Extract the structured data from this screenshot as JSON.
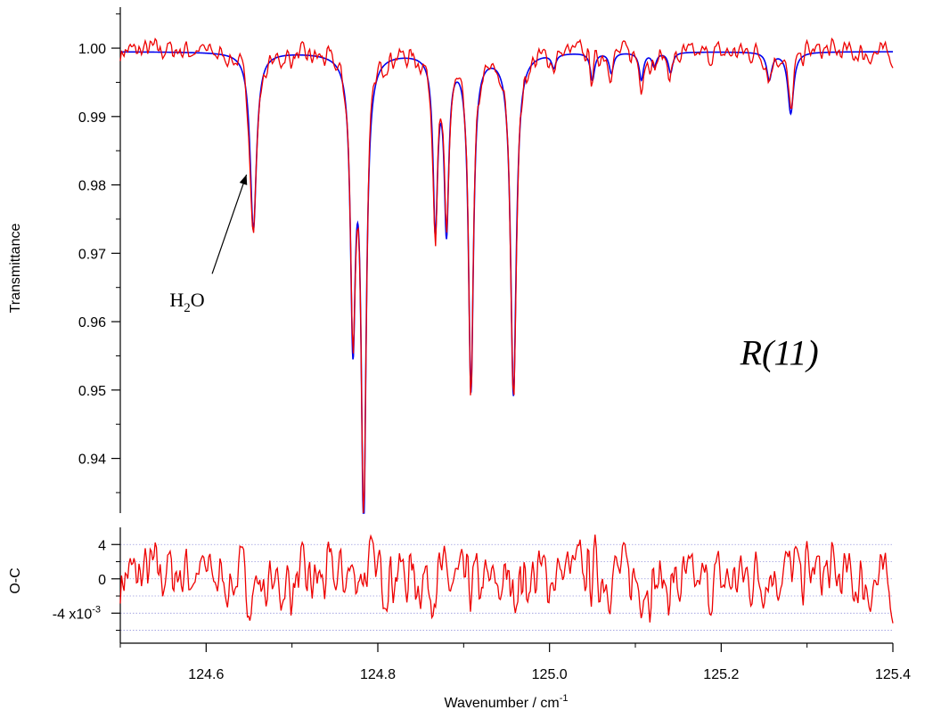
{
  "chart_data": [
    {
      "type": "line",
      "panel": "upper",
      "title": "",
      "xlabel": "",
      "ylabel": "Transmittance",
      "xlim": [
        124.5,
        125.4
      ],
      "ylim": [
        0.932,
        1.006
      ],
      "yticks": [
        0.94,
        0.95,
        0.96,
        0.97,
        0.98,
        0.99,
        1.0
      ],
      "ytick_labels": [
        "0.94",
        "0.95",
        "0.96",
        "0.97",
        "0.98",
        "0.99",
        "1.00"
      ],
      "yminor": [
        0.935,
        0.945,
        0.955,
        0.965,
        0.975,
        0.985,
        0.995,
        1.005
      ],
      "baseline": 0.9995,
      "grid": false,
      "legend": "none",
      "annotations": [
        {
          "text_main": "H",
          "text_sub": "2",
          "text_tail": "O",
          "x": 124.6,
          "y": 0.9625,
          "arrow_to": [
            124.647,
            0.9815
          ]
        },
        {
          "text": "R(11)",
          "x": 125.22,
          "y": 0.9555
        }
      ],
      "series": [
        {
          "color": "#0000ee",
          "kind": "model",
          "lines": [
            {
              "x0": 124.655,
              "depth": 0.026,
              "w": 0.0045
            },
            {
              "x0": 124.771,
              "depth": 0.04,
              "w": 0.0035
            },
            {
              "x0": 124.7835,
              "depth": 0.067,
              "w": 0.0035
            },
            {
              "x0": 124.867,
              "depth": 0.025,
              "w": 0.0032
            },
            {
              "x0": 124.88,
              "depth": 0.025,
              "w": 0.0032
            },
            {
              "x0": 124.9085,
              "depth": 0.049,
              "w": 0.0035
            },
            {
              "x0": 124.958,
              "depth": 0.05,
              "w": 0.004
            },
            {
              "x0": 125.005,
              "depth": 0.002,
              "w": 0.003
            },
            {
              "x0": 125.05,
              "depth": 0.004,
              "w": 0.003
            },
            {
              "x0": 125.072,
              "depth": 0.003,
              "w": 0.003
            },
            {
              "x0": 125.107,
              "depth": 0.004,
              "w": 0.003
            },
            {
              "x0": 125.122,
              "depth": 0.002,
              "w": 0.003
            },
            {
              "x0": 125.141,
              "depth": 0.003,
              "w": 0.003
            },
            {
              "x0": 125.256,
              "depth": 0.004,
              "w": 0.0035
            },
            {
              "x0": 125.281,
              "depth": 0.009,
              "w": 0.004
            }
          ]
        },
        {
          "color": "#ee0000",
          "kind": "measured",
          "noise_amplitude": 0.0022
        }
      ]
    },
    {
      "type": "line",
      "panel": "lower",
      "title": "",
      "xlabel": "Wavenumber / cm",
      "xlabel_sup": "-1",
      "ylabel": "O-C",
      "xlim": [
        124.5,
        125.4
      ],
      "ylim": [
        -7.5,
        6
      ],
      "xticks": [
        124.6,
        124.8,
        125.0,
        125.2,
        125.4
      ],
      "xtick_labels": [
        "124.6",
        "124.8",
        "125.0",
        "125.2",
        "125.4"
      ],
      "yticks": [
        4,
        0,
        -4
      ],
      "ytick_labels": [
        "4",
        "0",
        "-4 x10"
      ],
      "ytick_exponent": "-3",
      "yminor": [
        2,
        -2,
        -6
      ],
      "gridlines": [
        4,
        2,
        0,
        -2,
        -4,
        -6
      ],
      "grid_color": "#9999dd",
      "legend": "none",
      "series": [
        {
          "color": "#ee0000",
          "kind": "residual",
          "amplitude": 3.0
        }
      ]
    }
  ]
}
